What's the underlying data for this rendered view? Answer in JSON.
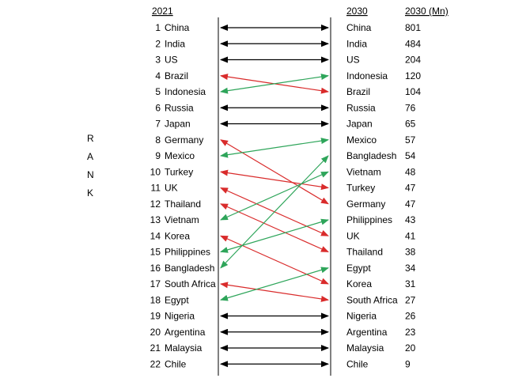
{
  "chart_data": {
    "type": "slope",
    "headers": {
      "left": "2021",
      "right": "2030",
      "value": "2030 (Mn)"
    },
    "side_label": "RANK",
    "colors": {
      "unchanged": "#000000",
      "down": "#d92b2b",
      "up": "#2ea55a"
    },
    "left": [
      {
        "rank": 1,
        "country": "China"
      },
      {
        "rank": 2,
        "country": "India"
      },
      {
        "rank": 3,
        "country": "US"
      },
      {
        "rank": 4,
        "country": "Brazil"
      },
      {
        "rank": 5,
        "country": "Indonesia"
      },
      {
        "rank": 6,
        "country": "Russia"
      },
      {
        "rank": 7,
        "country": "Japan"
      },
      {
        "rank": 8,
        "country": "Germany"
      },
      {
        "rank": 9,
        "country": "Mexico"
      },
      {
        "rank": 10,
        "country": "Turkey"
      },
      {
        "rank": 11,
        "country": "UK"
      },
      {
        "rank": 12,
        "country": "Thailand"
      },
      {
        "rank": 13,
        "country": "Vietnam"
      },
      {
        "rank": 14,
        "country": "Korea"
      },
      {
        "rank": 15,
        "country": "Philippines"
      },
      {
        "rank": 16,
        "country": "Bangladesh"
      },
      {
        "rank": 17,
        "country": "South Africa"
      },
      {
        "rank": 18,
        "country": "Egypt"
      },
      {
        "rank": 19,
        "country": "Nigeria"
      },
      {
        "rank": 20,
        "country": "Argentina"
      },
      {
        "rank": 21,
        "country": "Malaysia"
      },
      {
        "rank": 22,
        "country": "Chile"
      }
    ],
    "right": [
      {
        "rank": 1,
        "country": "China",
        "value": 801
      },
      {
        "rank": 2,
        "country": "India",
        "value": 484
      },
      {
        "rank": 3,
        "country": "US",
        "value": 204
      },
      {
        "rank": 4,
        "country": "Indonesia",
        "value": 120
      },
      {
        "rank": 5,
        "country": "Brazil",
        "value": 104
      },
      {
        "rank": 6,
        "country": "Russia",
        "value": 76
      },
      {
        "rank": 7,
        "country": "Japan",
        "value": 65
      },
      {
        "rank": 8,
        "country": "Mexico",
        "value": 57
      },
      {
        "rank": 9,
        "country": "Bangladesh",
        "value": 54
      },
      {
        "rank": 10,
        "country": "Vietnam",
        "value": 48
      },
      {
        "rank": 11,
        "country": "Turkey",
        "value": 47
      },
      {
        "rank": 12,
        "country": "Germany",
        "value": 47
      },
      {
        "rank": 13,
        "country": "Philippines",
        "value": 43
      },
      {
        "rank": 14,
        "country": "UK",
        "value": 41
      },
      {
        "rank": 15,
        "country": "Thailand",
        "value": 38
      },
      {
        "rank": 16,
        "country": "Egypt",
        "value": 34
      },
      {
        "rank": 17,
        "country": "Korea",
        "value": 31
      },
      {
        "rank": 18,
        "country": "South Africa",
        "value": 27
      },
      {
        "rank": 19,
        "country": "Nigeria",
        "value": 26
      },
      {
        "rank": 20,
        "country": "Argentina",
        "value": 23
      },
      {
        "rank": 21,
        "country": "Malaysia",
        "value": 20
      },
      {
        "rank": 22,
        "country": "Chile",
        "value": 9
      }
    ]
  }
}
